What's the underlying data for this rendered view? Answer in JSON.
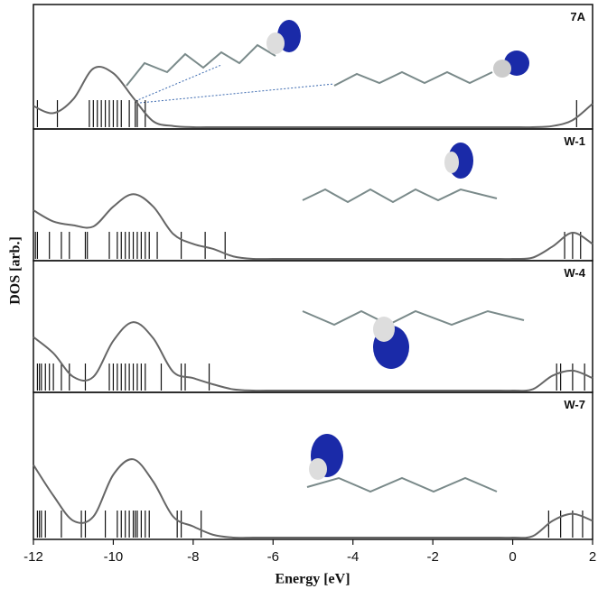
{
  "chart_data": {
    "type": "line",
    "xlabel": "Energy [eV]",
    "ylabel": "DOS [arb.]",
    "xlim": [
      -12,
      2
    ],
    "xticks": [
      -12,
      -10,
      -8,
      -6,
      -4,
      -2,
      0,
      2
    ],
    "ylim": [
      0,
      1
    ],
    "color": "#666666",
    "level_color": "#111111",
    "x": [
      -12,
      -11.5,
      -11,
      -10.5,
      -10,
      -9.5,
      -9,
      -8.5,
      -8,
      -7.5,
      -7,
      -6.5,
      -6,
      -5.5,
      -5,
      -4.5,
      -4,
      -3.5,
      -3,
      -2.5,
      -2,
      -1.5,
      -1,
      -0.5,
      0,
      0.5,
      1,
      1.5,
      2
    ],
    "panels": [
      {
        "label": "7A",
        "values": [
          0.18,
          0.12,
          0.24,
          0.5,
          0.46,
          0.25,
          0.05,
          0.01,
          0,
          0,
          0,
          0,
          0,
          0,
          0,
          0,
          0,
          0,
          0,
          0,
          0,
          0,
          0,
          0,
          0,
          0,
          0.01,
          0.06,
          0.2
        ],
        "levels": [
          -11.9,
          -11.4,
          -10.6,
          -10.5,
          -10.4,
          -10.3,
          -10.2,
          -10.1,
          -10.0,
          -9.9,
          -9.8,
          -9.6,
          -9.45,
          -9.4,
          -9.2,
          1.6,
          2.0
        ]
      },
      {
        "label": "W-1",
        "values": [
          0.39,
          0.3,
          0.27,
          0.26,
          0.42,
          0.52,
          0.42,
          0.2,
          0.12,
          0.08,
          0.02,
          0,
          0,
          0,
          0,
          0,
          0,
          0,
          0,
          0,
          0,
          0,
          0,
          0,
          0,
          0.01,
          0.1,
          0.21,
          0.12
        ],
        "levels": [
          -11.95,
          -11.9,
          -11.6,
          -11.3,
          -11.1,
          -10.7,
          -10.65,
          -10.1,
          -9.9,
          -9.8,
          -9.7,
          -9.6,
          -9.5,
          -9.4,
          -9.3,
          -9.2,
          -9.1,
          -8.9,
          -8.3,
          -7.7,
          -7.2,
          1.3,
          1.5,
          1.7
        ]
      },
      {
        "label": "W-4",
        "values": [
          0.43,
          0.3,
          0.11,
          0.11,
          0.4,
          0.55,
          0.42,
          0.15,
          0.1,
          0.05,
          0.01,
          0,
          0,
          0,
          0,
          0,
          0,
          0,
          0,
          0,
          0,
          0,
          0,
          0,
          0,
          0.01,
          0.12,
          0.16,
          0.1
        ],
        "levels": [
          -11.9,
          -11.85,
          -11.8,
          -11.7,
          -11.6,
          -11.5,
          -11.3,
          -11.1,
          -10.7,
          -10.1,
          -10.0,
          -9.9,
          -9.8,
          -9.7,
          -9.6,
          -9.5,
          -9.4,
          -9.3,
          -9.2,
          -8.8,
          -8.3,
          -8.2,
          -7.6,
          1.1,
          1.2,
          1.5,
          1.8
        ]
      },
      {
        "label": "W-7",
        "values": [
          0.52,
          0.3,
          0.12,
          0.15,
          0.45,
          0.56,
          0.4,
          0.15,
          0.08,
          0.02,
          0,
          0,
          0,
          0,
          0,
          0,
          0,
          0,
          0,
          0,
          0,
          0,
          0,
          0,
          0,
          0.01,
          0.12,
          0.17,
          0.12
        ],
        "levels": [
          -11.9,
          -11.85,
          -11.8,
          -11.7,
          -11.3,
          -10.8,
          -10.7,
          -10.2,
          -9.9,
          -9.8,
          -9.7,
          -9.6,
          -9.5,
          -9.45,
          -9.4,
          -9.3,
          -9.2,
          -9.1,
          -8.4,
          -8.3,
          -7.8,
          0.9,
          1.2,
          1.5,
          1.75
        ]
      }
    ]
  }
}
